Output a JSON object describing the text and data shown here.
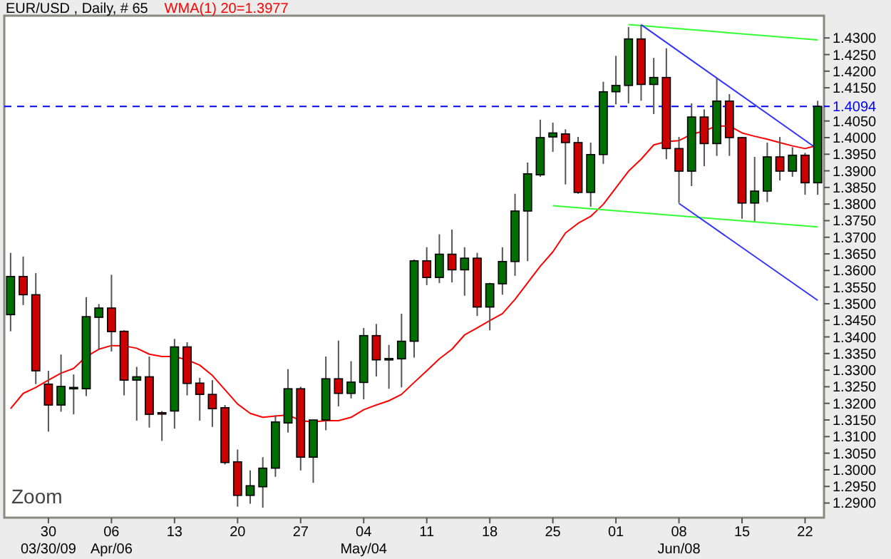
{
  "chart_data": {
    "type": "candlestick",
    "title": "EUR/USD , Daily, # 65",
    "legend": "top",
    "categories": [
      null,
      null,
      null,
      "30\n03/30/09",
      null,
      null,
      null,
      null,
      "06\nApr/06",
      null,
      null,
      null,
      null,
      "13",
      null,
      null,
      null,
      null,
      "20",
      null,
      null,
      null,
      null,
      "27",
      null,
      null,
      null,
      null,
      "04\nMay/04",
      null,
      null,
      null,
      null,
      "11",
      null,
      null,
      null,
      null,
      "18",
      null,
      null,
      null,
      null,
      "25",
      null,
      null,
      null,
      null,
      "01",
      null,
      null,
      null,
      null,
      "08\nJun/08",
      null,
      null,
      null,
      null,
      "15",
      null,
      null,
      null,
      null,
      "22",
      null
    ],
    "ohlc": [
      [
        1.3467,
        1.3653,
        1.3417,
        1.3582
      ],
      [
        1.3582,
        1.3642,
        1.3496,
        1.3527
      ],
      [
        1.3527,
        1.3592,
        1.3258,
        1.3298
      ],
      [
        1.3258,
        1.3298,
        1.3115,
        1.3195
      ],
      [
        1.3195,
        1.3347,
        1.3175,
        1.3251
      ],
      [
        1.3247,
        1.3287,
        1.3167,
        1.3248
      ],
      [
        1.3244,
        1.352,
        1.3222,
        1.3461
      ],
      [
        1.3459,
        1.3499,
        1.3363,
        1.3487
      ],
      [
        1.3487,
        1.3587,
        1.3356,
        1.3416
      ],
      [
        1.3417,
        1.342,
        1.3224,
        1.327
      ],
      [
        1.327,
        1.331,
        1.3148,
        1.328
      ],
      [
        1.328,
        1.3341,
        1.3127,
        1.3167
      ],
      [
        1.3172,
        1.3177,
        1.3087,
        1.3168
      ],
      [
        1.3177,
        1.3394,
        1.3124,
        1.337
      ],
      [
        1.337,
        1.3384,
        1.3224,
        1.326
      ],
      [
        1.3261,
        1.3277,
        1.3148,
        1.3227
      ],
      [
        1.3227,
        1.327,
        1.3129,
        1.3184
      ],
      [
        1.3187,
        1.3195,
        1.3016,
        1.3022
      ],
      [
        1.3024,
        1.3061,
        1.2889,
        1.2923
      ],
      [
        1.2923,
        1.2998,
        1.2898,
        1.2952
      ],
      [
        1.2949,
        1.3038,
        1.2886,
        1.3005
      ],
      [
        1.3005,
        1.3164,
        1.2979,
        1.3144
      ],
      [
        1.3141,
        1.3303,
        1.3112,
        1.3244
      ],
      [
        1.3244,
        1.325,
        1.2998,
        1.3038
      ],
      [
        1.3038,
        1.315,
        1.2961,
        1.315
      ],
      [
        1.315,
        1.3341,
        1.3119,
        1.3274
      ],
      [
        1.3274,
        1.3389,
        1.3191,
        1.323
      ],
      [
        1.323,
        1.3327,
        1.3215,
        1.3264
      ],
      [
        1.3263,
        1.3427,
        1.3212,
        1.3404
      ],
      [
        1.3404,
        1.3439,
        1.3281,
        1.3331
      ],
      [
        1.3331,
        1.3376,
        1.3244,
        1.3335
      ],
      [
        1.3334,
        1.347,
        1.3248,
        1.3387
      ],
      [
        1.3387,
        1.3633,
        1.3338,
        1.3629
      ],
      [
        1.3629,
        1.367,
        1.3556,
        1.3579
      ],
      [
        1.3579,
        1.3709,
        1.3562,
        1.3649
      ],
      [
        1.3649,
        1.3723,
        1.3564,
        1.3602
      ],
      [
        1.3602,
        1.367,
        1.3524,
        1.3637
      ],
      [
        1.3637,
        1.3653,
        1.3463,
        1.349
      ],
      [
        1.349,
        1.3563,
        1.342,
        1.356
      ],
      [
        1.356,
        1.367,
        1.3527,
        1.3627
      ],
      [
        1.3627,
        1.3831,
        1.3584,
        1.3779
      ],
      [
        1.3779,
        1.3925,
        1.3628,
        1.3891
      ],
      [
        1.3888,
        1.4054,
        1.3882,
        1.4
      ],
      [
        1.4002,
        1.4045,
        1.3957,
        1.4014
      ],
      [
        1.4011,
        1.4025,
        1.3859,
        1.3985
      ],
      [
        1.3985,
        1.4002,
        1.3831,
        1.3835
      ],
      [
        1.3835,
        1.3985,
        1.3792,
        1.3949
      ],
      [
        1.3949,
        1.4168,
        1.3921,
        1.4138
      ],
      [
        1.4138,
        1.4246,
        1.41,
        1.4157
      ],
      [
        1.4157,
        1.4333,
        1.4103,
        1.4297
      ],
      [
        1.4297,
        1.434,
        1.4111,
        1.416
      ],
      [
        1.416,
        1.424,
        1.4071,
        1.4181
      ],
      [
        1.4181,
        1.4269,
        1.3935,
        1.3967
      ],
      [
        1.3967,
        1.4002,
        1.3803,
        1.3899
      ],
      [
        1.3899,
        1.4103,
        1.3854,
        1.4062
      ],
      [
        1.4062,
        1.4085,
        1.3914,
        1.3982
      ],
      [
        1.3982,
        1.4178,
        1.3945,
        1.411
      ],
      [
        1.411,
        1.4131,
        1.3945,
        1.4
      ],
      [
        1.4,
        1.4002,
        1.3756,
        1.3803
      ],
      [
        1.3803,
        1.3942,
        1.3749,
        1.3839
      ],
      [
        1.3839,
        1.3985,
        1.3806,
        1.3942
      ],
      [
        1.3942,
        1.4002,
        1.3871,
        1.3899
      ],
      [
        1.3899,
        1.3971,
        1.3882,
        1.3947
      ],
      [
        1.3947,
        1.3954,
        1.3828,
        1.3864
      ],
      [
        1.3864,
        1.4111,
        1.3828,
        1.4094
      ]
    ],
    "series": [
      {
        "name": "WMA(1) 20=1.3977",
        "type": "line",
        "color": "#ff0000",
        "values": [
          1.3184,
          1.323,
          1.3248,
          1.327,
          1.3291,
          1.3305,
          1.3341,
          1.3363,
          1.3374,
          1.3373,
          1.3366,
          1.3348,
          1.3341,
          1.3341,
          1.3331,
          1.3315,
          1.3284,
          1.3241,
          1.3198,
          1.317,
          1.3158,
          1.3162,
          1.3165,
          1.3148,
          1.3144,
          1.3148,
          1.3148,
          1.3158,
          1.3181,
          1.3195,
          1.3208,
          1.3227,
          1.3263,
          1.3298,
          1.3334,
          1.3363,
          1.3406,
          1.3427,
          1.3449,
          1.347,
          1.3513,
          1.3563,
          1.3613,
          1.3656,
          1.3713,
          1.3742,
          1.3763,
          1.3799,
          1.3849,
          1.3899,
          1.3935,
          1.3978,
          1.3988,
          1.3991,
          1.401,
          1.402,
          1.4035,
          1.4035,
          1.4014,
          1.4004,
          1.3995,
          1.3985,
          1.3975,
          1.3967,
          1.3977
        ]
      },
      {
        "type": "line",
        "color": "#33ff33",
        "values": [
          null,
          null,
          null,
          null,
          null,
          null,
          null,
          null,
          null,
          null,
          null,
          null,
          null,
          null,
          null,
          null,
          null,
          null,
          null,
          null,
          null,
          null,
          null,
          null,
          null,
          null,
          null,
          null,
          null,
          null,
          null,
          null,
          null,
          null,
          null,
          null,
          null,
          null,
          null,
          null,
          null,
          null,
          null,
          null,
          null,
          null,
          null,
          null,
          null,
          1.434,
          null,
          null,
          null,
          null,
          null,
          null,
          null,
          null,
          null,
          null,
          null,
          null,
          null,
          null,
          1.4294
        ]
      },
      {
        "type": "line",
        "color": "#33ff33",
        "values": [
          null,
          null,
          null,
          null,
          null,
          null,
          null,
          null,
          null,
          null,
          null,
          null,
          null,
          null,
          null,
          null,
          null,
          null,
          null,
          null,
          null,
          null,
          null,
          null,
          null,
          null,
          null,
          null,
          null,
          null,
          null,
          null,
          null,
          null,
          null,
          null,
          null,
          null,
          null,
          null,
          null,
          null,
          null,
          1.3795,
          null,
          null,
          null,
          null,
          null,
          null,
          null,
          null,
          null,
          null,
          null,
          null,
          null,
          null,
          null,
          null,
          null,
          null,
          null,
          null,
          1.3731
        ]
      },
      {
        "type": "line",
        "color": "#3333ff",
        "values": [
          null,
          null,
          null,
          null,
          null,
          null,
          null,
          null,
          null,
          null,
          null,
          null,
          null,
          null,
          null,
          null,
          null,
          null,
          null,
          null,
          null,
          null,
          null,
          null,
          null,
          null,
          null,
          null,
          null,
          null,
          null,
          null,
          null,
          null,
          null,
          null,
          null,
          null,
          null,
          null,
          null,
          null,
          null,
          null,
          null,
          null,
          null,
          null,
          null,
          null,
          1.434,
          null,
          null,
          null,
          null,
          null,
          null,
          null,
          null,
          null,
          null,
          null,
          null,
          null,
          1.3965
        ]
      },
      {
        "type": "line",
        "color": "#3333ff",
        "values": [
          null,
          null,
          null,
          null,
          null,
          null,
          null,
          null,
          null,
          null,
          null,
          null,
          null,
          null,
          null,
          null,
          null,
          null,
          null,
          null,
          null,
          null,
          null,
          null,
          null,
          null,
          null,
          null,
          null,
          null,
          null,
          null,
          null,
          null,
          null,
          null,
          null,
          null,
          null,
          null,
          null,
          null,
          null,
          null,
          null,
          null,
          null,
          null,
          null,
          null,
          null,
          null,
          null,
          1.3802,
          null,
          null,
          null,
          null,
          null,
          null,
          null,
          null,
          null,
          null,
          1.351
        ]
      }
    ],
    "ylim": [
      1.2856,
      1.4367
    ],
    "yticks": [
      {
        "value": 1.29,
        "label": "1.2900"
      },
      {
        "value": 1.295,
        "label": "1.2950"
      },
      {
        "value": 1.3,
        "label": "1.3000"
      },
      {
        "value": 1.305,
        "label": "1.3050"
      },
      {
        "value": 1.31,
        "label": "1.3100"
      },
      {
        "value": 1.315,
        "label": "1.3150"
      },
      {
        "value": 1.32,
        "label": "1.3200"
      },
      {
        "value": 1.325,
        "label": "1.3250"
      },
      {
        "value": 1.33,
        "label": "1.3300"
      },
      {
        "value": 1.335,
        "label": "1.3350"
      },
      {
        "value": 1.34,
        "label": "1.3400"
      },
      {
        "value": 1.345,
        "label": "1.3450"
      },
      {
        "value": 1.35,
        "label": "1.3500"
      },
      {
        "value": 1.355,
        "label": "1.3550"
      },
      {
        "value": 1.36,
        "label": "1.3600"
      },
      {
        "value": 1.365,
        "label": "1.3650"
      },
      {
        "value": 1.37,
        "label": "1.3700"
      },
      {
        "value": 1.375,
        "label": "1.3750"
      },
      {
        "value": 1.38,
        "label": "1.3800"
      },
      {
        "value": 1.385,
        "label": "1.3850"
      },
      {
        "value": 1.39,
        "label": "1.3900"
      },
      {
        "value": 1.395,
        "label": "1.3950"
      },
      {
        "value": 1.4,
        "label": "1.4000"
      },
      {
        "value": 1.405,
        "label": "1.4050"
      },
      {
        "value": 1.415,
        "label": "1.4150"
      },
      {
        "value": 1.42,
        "label": "1.4200"
      },
      {
        "value": 1.425,
        "label": "1.4250"
      },
      {
        "value": 1.43,
        "label": "1.4300"
      }
    ],
    "ref_lines": [
      {
        "axis": "y",
        "value": 1.4094,
        "label": "1.4094",
        "color": "#0000ff",
        "line_style": "dashed"
      }
    ],
    "annotations": [
      "Zoom"
    ]
  }
}
